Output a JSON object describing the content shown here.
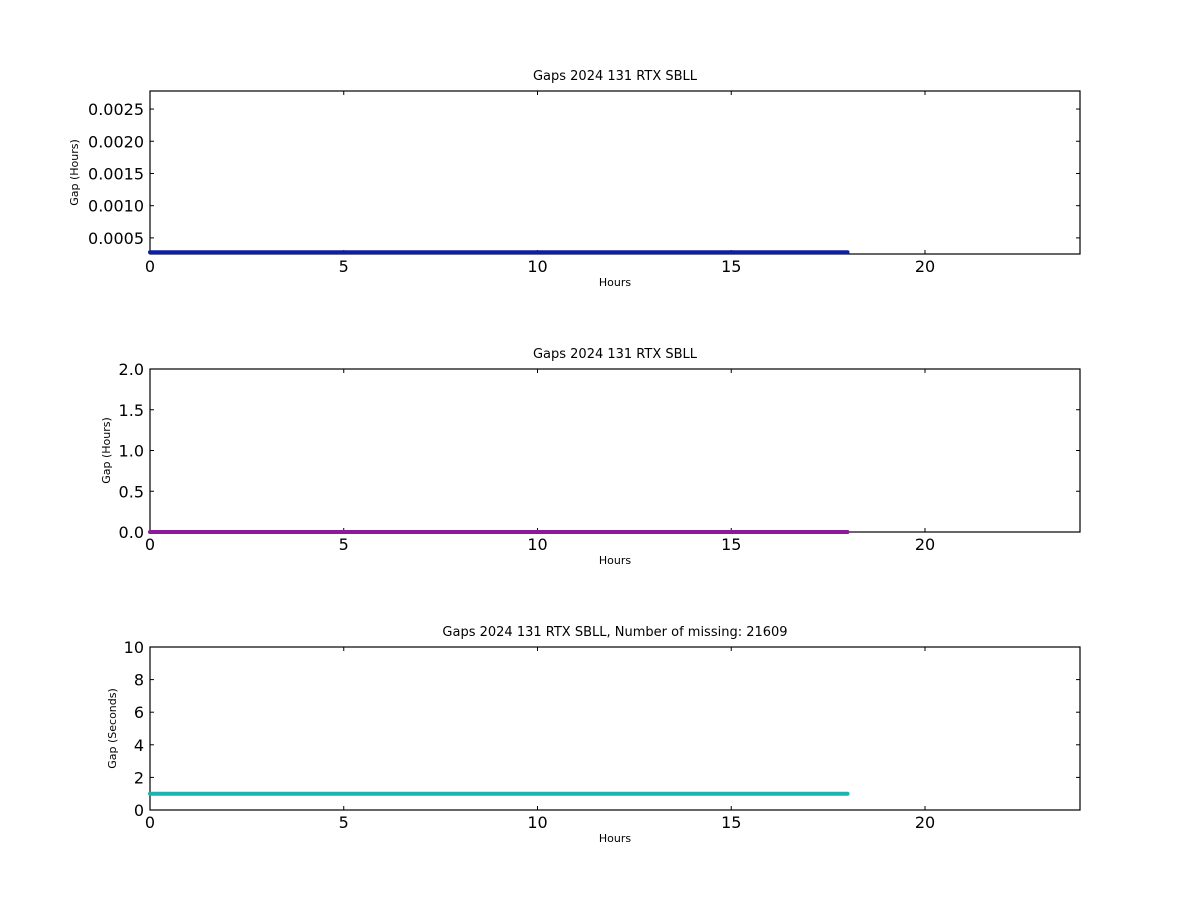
{
  "chart_data": [
    {
      "type": "line",
      "title": "Gaps 2024 131 RTX  SBLL",
      "xlabel": "Hours",
      "ylabel": "Gap (Hours)",
      "xlim": [
        0,
        24
      ],
      "ylim": [
        0.00025,
        0.00278
      ],
      "xticks": [
        0,
        5,
        10,
        15,
        20
      ],
      "xtick_labels": [
        "0",
        "5",
        "10",
        "15",
        "20"
      ],
      "yticks": [
        0.0005,
        0.001,
        0.0015,
        0.002,
        0.0025
      ],
      "ytick_labels": [
        "0.0005",
        "0.0010",
        "0.0015",
        "0.0020",
        "0.0025"
      ],
      "grid": false,
      "series": [
        {
          "color": "#0b1fa8",
          "x": [
            0,
            18
          ],
          "y": [
            0.000278,
            0.000278
          ]
        }
      ]
    },
    {
      "type": "line",
      "title": "Gaps 2024 131 RTX  SBLL",
      "xlabel": "Hours",
      "ylabel": "Gap (Hours)",
      "xlim": [
        0,
        24
      ],
      "ylim": [
        0,
        2
      ],
      "xticks": [
        0,
        5,
        10,
        15,
        20
      ],
      "xtick_labels": [
        "0",
        "5",
        "10",
        "15",
        "20"
      ],
      "yticks": [
        0,
        0.5,
        1.0,
        1.5,
        2.0
      ],
      "ytick_labels": [
        "0.0",
        "0.5",
        "1.0",
        "1.5",
        "2.0"
      ],
      "grid": false,
      "series": [
        {
          "color": "#8b1a9b",
          "x": [
            0,
            18
          ],
          "y": [
            0.000278,
            0.000278
          ]
        }
      ]
    },
    {
      "type": "line",
      "title": "Gaps 2024 131 RTX  SBLL, Number of missing: 21609",
      "xlabel": "Hours",
      "ylabel": "Gap (Seconds)",
      "xlim": [
        0,
        24
      ],
      "ylim": [
        0,
        10
      ],
      "xticks": [
        0,
        5,
        10,
        15,
        20
      ],
      "xtick_labels": [
        "0",
        "5",
        "10",
        "15",
        "20"
      ],
      "yticks": [
        0,
        2,
        4,
        6,
        8,
        10
      ],
      "ytick_labels": [
        "0",
        "2",
        "4",
        "6",
        "8",
        "10"
      ],
      "grid": false,
      "series": [
        {
          "color": "#1ab3ae",
          "x": [
            0,
            18
          ],
          "y": [
            1,
            1
          ]
        }
      ]
    }
  ]
}
